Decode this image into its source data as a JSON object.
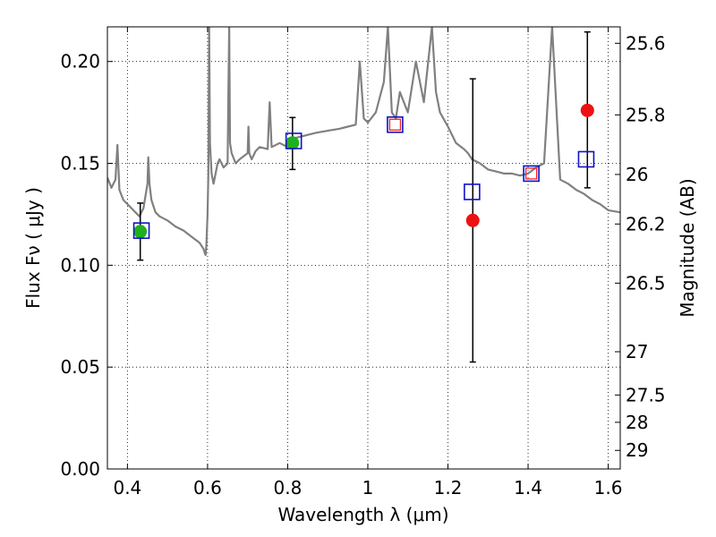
{
  "chart_data": {
    "type": "scatter",
    "title": "",
    "xlabel": "Wavelength  λ (μm)",
    "ylabel": "Flux  Fν  ( μJy )",
    "y2label": "Magnitude (AB)",
    "xlim": [
      0.35,
      1.63
    ],
    "ylim": [
      0.0,
      0.217
    ],
    "x_ticks": [
      0.4,
      0.6,
      0.8,
      1.0,
      1.2,
      1.4,
      1.6
    ],
    "x_tick_labels": [
      "0.4",
      "0.6",
      "0.8",
      "1",
      "1.2",
      "1.4",
      "1.6"
    ],
    "y_ticks": [
      0.0,
      0.05,
      0.1,
      0.15,
      0.2
    ],
    "y_tick_labels": [
      "0.00",
      "0.05",
      "0.10",
      "0.15",
      "0.20"
    ],
    "y2_ticks": [
      25.6,
      25.8,
      26,
      26.2,
      26.5,
      27,
      27.5,
      28,
      29
    ],
    "y2_tick_labels": [
      "25.6",
      "25.8",
      "26",
      "26.2",
      "26.5",
      "27",
      "27.5",
      "28",
      "29"
    ],
    "grid": true,
    "colors": {
      "spectrum": "#808080",
      "green_points": "#1fb01f",
      "red_points": "#ee1111",
      "model_squares": "#1010c8",
      "model_square_inner": "#ff2020",
      "errorbar": "#000000"
    },
    "series": [
      {
        "kind": "line",
        "x": [
          0.35,
          0.36,
          0.37,
          0.375,
          0.38,
          0.39,
          0.4,
          0.41,
          0.42,
          0.43,
          0.44,
          0.45,
          0.452,
          0.455,
          0.46,
          0.47,
          0.48,
          0.5,
          0.52,
          0.54,
          0.56,
          0.58,
          0.59,
          0.593,
          0.595,
          0.597,
          0.6,
          0.602,
          0.604,
          0.606,
          0.61,
          0.615,
          0.62,
          0.625,
          0.63,
          0.64,
          0.65,
          0.652,
          0.654,
          0.656,
          0.66,
          0.67,
          0.68,
          0.7,
          0.702,
          0.704,
          0.71,
          0.72,
          0.73,
          0.75,
          0.755,
          0.76,
          0.78,
          0.8,
          0.81,
          0.83,
          0.85,
          0.87,
          0.9,
          0.93,
          0.95,
          0.97,
          0.98,
          0.99,
          1.0,
          1.02,
          1.04,
          1.05,
          1.06,
          1.07,
          1.08,
          1.1,
          1.12,
          1.14,
          1.16,
          1.17,
          1.18,
          1.2,
          1.22,
          1.24,
          1.25,
          1.26,
          1.28,
          1.3,
          1.32,
          1.34,
          1.36,
          1.38,
          1.4,
          1.42,
          1.44,
          1.46,
          1.48,
          1.5,
          1.52,
          1.54,
          1.56,
          1.58,
          1.6,
          1.63
        ],
        "y": [
          0.143,
          0.138,
          0.142,
          0.159,
          0.137,
          0.132,
          0.13,
          0.128,
          0.126,
          0.124,
          0.128,
          0.14,
          0.153,
          0.14,
          0.132,
          0.126,
          0.124,
          0.122,
          0.119,
          0.117,
          0.114,
          0.111,
          0.108,
          0.106,
          0.105,
          0.11,
          0.125,
          0.145,
          0.217,
          0.16,
          0.145,
          0.14,
          0.145,
          0.15,
          0.152,
          0.148,
          0.15,
          0.185,
          0.217,
          0.16,
          0.155,
          0.15,
          0.152,
          0.155,
          0.168,
          0.155,
          0.152,
          0.156,
          0.158,
          0.157,
          0.18,
          0.158,
          0.16,
          0.158,
          0.162,
          0.163,
          0.164,
          0.165,
          0.166,
          0.167,
          0.168,
          0.169,
          0.2,
          0.172,
          0.17,
          0.175,
          0.19,
          0.217,
          0.175,
          0.172,
          0.185,
          0.175,
          0.2,
          0.18,
          0.217,
          0.185,
          0.175,
          0.168,
          0.16,
          0.157,
          0.155,
          0.152,
          0.15,
          0.147,
          0.146,
          0.145,
          0.145,
          0.144,
          0.145,
          0.148,
          0.15,
          0.217,
          0.142,
          0.14,
          0.137,
          0.135,
          0.132,
          0.13,
          0.127,
          0.126
        ]
      },
      {
        "kind": "points",
        "marker": "circle",
        "color_key": "green_points",
        "x": [
          0.432,
          0.812
        ],
        "y": [
          0.1165,
          0.16
        ]
      },
      {
        "kind": "points",
        "marker": "circle",
        "color_key": "red_points",
        "x": [
          1.262,
          1.548
        ],
        "y": [
          0.122,
          0.176
        ]
      },
      {
        "kind": "squares",
        "marker": "square",
        "color_key": "model_squares",
        "x": [
          0.435,
          0.815,
          1.068,
          1.26,
          1.408,
          1.545
        ],
        "y": [
          0.117,
          0.161,
          0.169,
          0.136,
          0.145,
          0.152
        ],
        "inner_red": [
          false,
          false,
          true,
          false,
          true,
          false
        ]
      },
      {
        "kind": "errorbars",
        "color_key": "errorbar",
        "x": [
          0.432,
          0.812,
          1.262,
          1.548
        ],
        "y_low": [
          0.1025,
          0.147,
          0.0525,
          0.138
        ],
        "y_high": [
          0.1305,
          0.1725,
          0.1915,
          0.2145
        ]
      }
    ]
  }
}
